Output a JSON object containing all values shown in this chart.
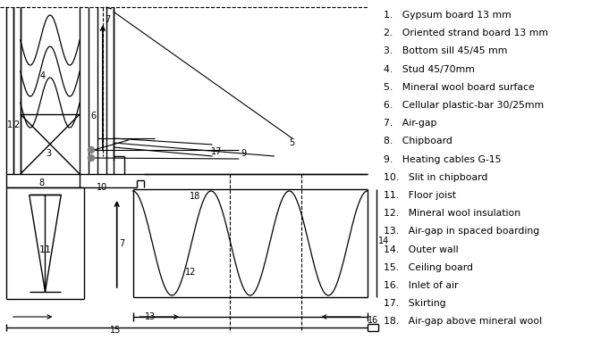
{
  "legend_items": [
    "Gypsum board 13 mm",
    "Oriented strand board 13 mm",
    "Bottom sill 45/45 mm",
    "Stud 45/70mm",
    "Mineral wool board surface",
    "Cellular plastic-bar 30/25mm",
    "Air-gap",
    "Chipboard",
    "Heating cables G-15",
    "Slit in chipboard",
    "Floor joist",
    "Mineral wool insulation",
    "Air-gap in spaced boarding",
    "Outer wall",
    "Ceiling board",
    "Inlet of air",
    "Skirting",
    "Air-gap above mineral wool"
  ],
  "bg_color": "#ffffff",
  "line_color": "#000000"
}
